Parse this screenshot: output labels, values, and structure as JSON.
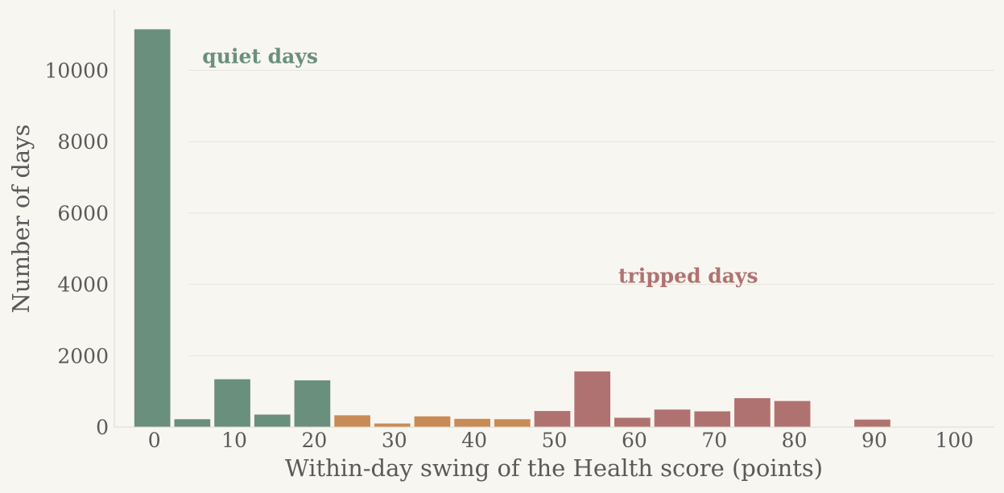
{
  "chart_data": {
    "type": "bar",
    "title": "",
    "xlabel": "Within-day swing of the Health score (points)",
    "ylabel": "Number of days",
    "xlim": [
      -5,
      105
    ],
    "ylim": [
      0,
      11700
    ],
    "xticks": [
      0,
      10,
      20,
      30,
      40,
      50,
      60,
      70,
      80,
      90,
      100
    ],
    "yticks": [
      0,
      2000,
      4000,
      6000,
      8000,
      10000
    ],
    "bin_width": 5,
    "grid": "horizontal",
    "colors": {
      "quiet": "#6a8f7d",
      "middle": "#c98b55",
      "tripped": "#b07270",
      "background": "#f8f6f1",
      "grid": "#e6e3dc",
      "text": "#5a5a5a"
    },
    "bins": [
      {
        "start": 0,
        "count": 11150,
        "group": "quiet"
      },
      {
        "start": 5,
        "count": 220,
        "group": "quiet"
      },
      {
        "start": 10,
        "count": 1340,
        "group": "quiet"
      },
      {
        "start": 15,
        "count": 350,
        "group": "quiet"
      },
      {
        "start": 20,
        "count": 1310,
        "group": "quiet"
      },
      {
        "start": 25,
        "count": 330,
        "group": "middle"
      },
      {
        "start": 30,
        "count": 100,
        "group": "middle"
      },
      {
        "start": 35,
        "count": 300,
        "group": "middle"
      },
      {
        "start": 40,
        "count": 230,
        "group": "middle"
      },
      {
        "start": 45,
        "count": 220,
        "group": "middle"
      },
      {
        "start": 50,
        "count": 450,
        "group": "tripped"
      },
      {
        "start": 55,
        "count": 1560,
        "group": "tripped"
      },
      {
        "start": 60,
        "count": 260,
        "group": "tripped"
      },
      {
        "start": 65,
        "count": 490,
        "group": "tripped"
      },
      {
        "start": 70,
        "count": 440,
        "group": "tripped"
      },
      {
        "start": 75,
        "count": 810,
        "group": "tripped"
      },
      {
        "start": 80,
        "count": 730,
        "group": "tripped"
      },
      {
        "start": 90,
        "count": 210,
        "group": "tripped"
      }
    ],
    "annotations": [
      {
        "text": "quiet days",
        "x": 6,
        "y": 10200,
        "group": "quiet"
      },
      {
        "text": "tripped days",
        "x": 58,
        "y": 4050,
        "group": "tripped"
      }
    ]
  }
}
